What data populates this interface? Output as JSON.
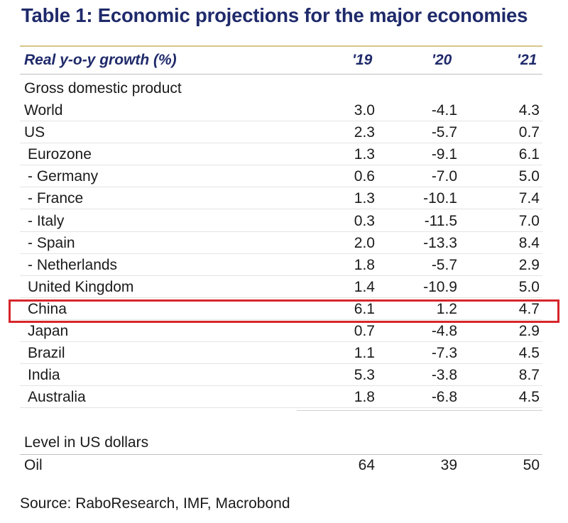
{
  "title": "Table 1: Economic projections for the major economies",
  "header": {
    "label": "Real y-o-y growth (%)",
    "years": [
      "'19",
      "'20",
      "'21"
    ]
  },
  "section_gdp": "Gross domestic product",
  "rows": [
    {
      "label": "World",
      "values": [
        "3.0",
        "-4.1",
        "4.3"
      ]
    },
    {
      "label": "US",
      "values": [
        "2.3",
        "-5.7",
        "0.7"
      ]
    },
    {
      "label": "Eurozone",
      "values": [
        "1.3",
        "-9.1",
        "6.1"
      ]
    },
    {
      "label": "- Germany",
      "values": [
        "0.6",
        "-7.0",
        "5.0"
      ]
    },
    {
      "label": "- France",
      "values": [
        "1.3",
        "-10.1",
        "7.4"
      ]
    },
    {
      "label": "- Italy",
      "values": [
        "0.3",
        "-11.5",
        "7.0"
      ]
    },
    {
      "label": "- Spain",
      "values": [
        "2.0",
        "-13.3",
        "8.4"
      ]
    },
    {
      "label": "- Netherlands",
      "values": [
        "1.8",
        "-5.7",
        "2.9"
      ]
    },
    {
      "label": "United Kingdom",
      "values": [
        "1.4",
        "-10.9",
        "5.0"
      ]
    },
    {
      "label": "China",
      "values": [
        "6.1",
        "1.2",
        "4.7"
      ]
    },
    {
      "label": "Japan",
      "values": [
        "0.7",
        "-4.8",
        "2.9"
      ]
    },
    {
      "label": "Brazil",
      "values": [
        "1.1",
        "-7.3",
        "4.5"
      ]
    },
    {
      "label": "India",
      "values": [
        "5.3",
        "-3.8",
        "8.7"
      ]
    },
    {
      "label": "Australia",
      "values": [
        "1.8",
        "-6.8",
        "4.5"
      ]
    }
  ],
  "section_level": "Level in US dollars",
  "oil": {
    "label": "Oil",
    "values": [
      "64",
      "39",
      "50"
    ]
  },
  "source": "Source: RaboResearch, IMF, Macrobond",
  "colors": {
    "title": "#1f2a6b",
    "highlight": "#d6262b"
  }
}
